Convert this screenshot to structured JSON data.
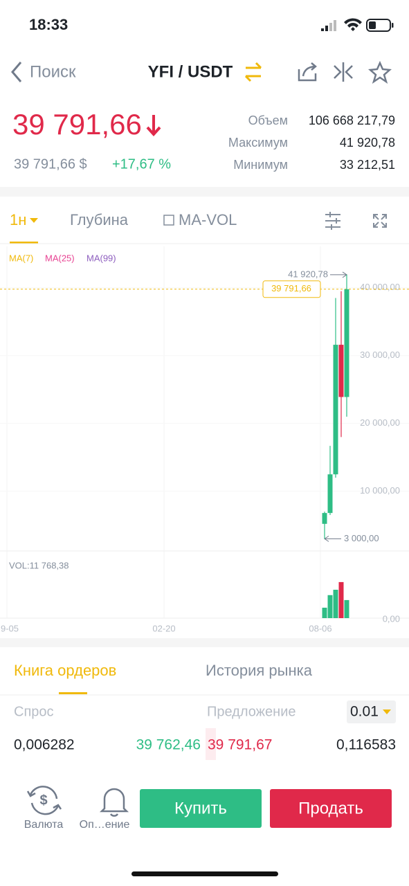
{
  "status_bar": {
    "time": "18:33"
  },
  "header": {
    "back": "Поиск",
    "pair": "YFI / USDT"
  },
  "ticker": {
    "price": "39 791,66",
    "price_usd": "39 791,66 $",
    "change": "+17,67 %",
    "stats": [
      {
        "label": "Объем",
        "value": "106 668 217,79"
      },
      {
        "label": "Максимум",
        "value": "41 920,78"
      },
      {
        "label": "Минимум",
        "value": "33 212,51"
      }
    ]
  },
  "tabs": {
    "interval": "1н",
    "depth": "Глубина",
    "indicator": "MA-VOL"
  },
  "chart": {
    "type": "candlestick",
    "ma_legend": [
      {
        "name": "MA(7)",
        "color": "#f0b90b"
      },
      {
        "name": "MA(25)",
        "color": "#e84393"
      },
      {
        "name": "MA(99)",
        "color": "#8e5fbf"
      }
    ],
    "up_color": "#2ebd85",
    "down_color": "#e0294a",
    "ylim": [
      1200,
      46200
    ],
    "yticks": [
      {
        "value": 10000,
        "label": "10 000,00"
      },
      {
        "value": 20000,
        "label": "20 000,00"
      },
      {
        "value": 30000,
        "label": "30 000,00"
      },
      {
        "value": 40000,
        "label": "40 000,00"
      }
    ],
    "last_price": {
      "value": 39791.66,
      "label": "39 791,66"
    },
    "high_marker": {
      "value": 41920.78,
      "label": "41 920,78"
    },
    "low_marker": {
      "value": 3000,
      "label": "3 000,00"
    },
    "x_labels": [
      "9-05",
      "02-20",
      "08-06"
    ],
    "candles": [
      {
        "open": 5200,
        "high": 7000,
        "low": 3000,
        "close": 6800
      },
      {
        "open": 6800,
        "high": 16700,
        "low": 6500,
        "close": 12500
      },
      {
        "open": 12500,
        "high": 38500,
        "low": 12000,
        "close": 31600
      },
      {
        "open": 31600,
        "high": 39500,
        "low": 18000,
        "close": 23900
      },
      {
        "open": 23900,
        "high": 41920.78,
        "low": 21000,
        "close": 39791.66
      }
    ],
    "vol_label": "VOL:11 768,38",
    "vol_ylim": [
      0,
      37000
    ],
    "vol_yticks": [
      {
        "value": 0,
        "label": "0,00"
      }
    ],
    "volumes": [
      6800,
      15000,
      18500,
      23500,
      11768.38
    ]
  },
  "order_book": {
    "tabs": [
      "Книга ордеров",
      "История рынка"
    ],
    "bid_header": "Спрос",
    "ask_header": "Предложение",
    "step": "0.01",
    "row": [
      "0,006282",
      "39 762,46",
      "39 791,67",
      "0,116583"
    ]
  },
  "bottom_bar": {
    "currency": "Валюта",
    "alerts": "Оп…ение",
    "buy": "Купить",
    "sell": "Продать"
  }
}
